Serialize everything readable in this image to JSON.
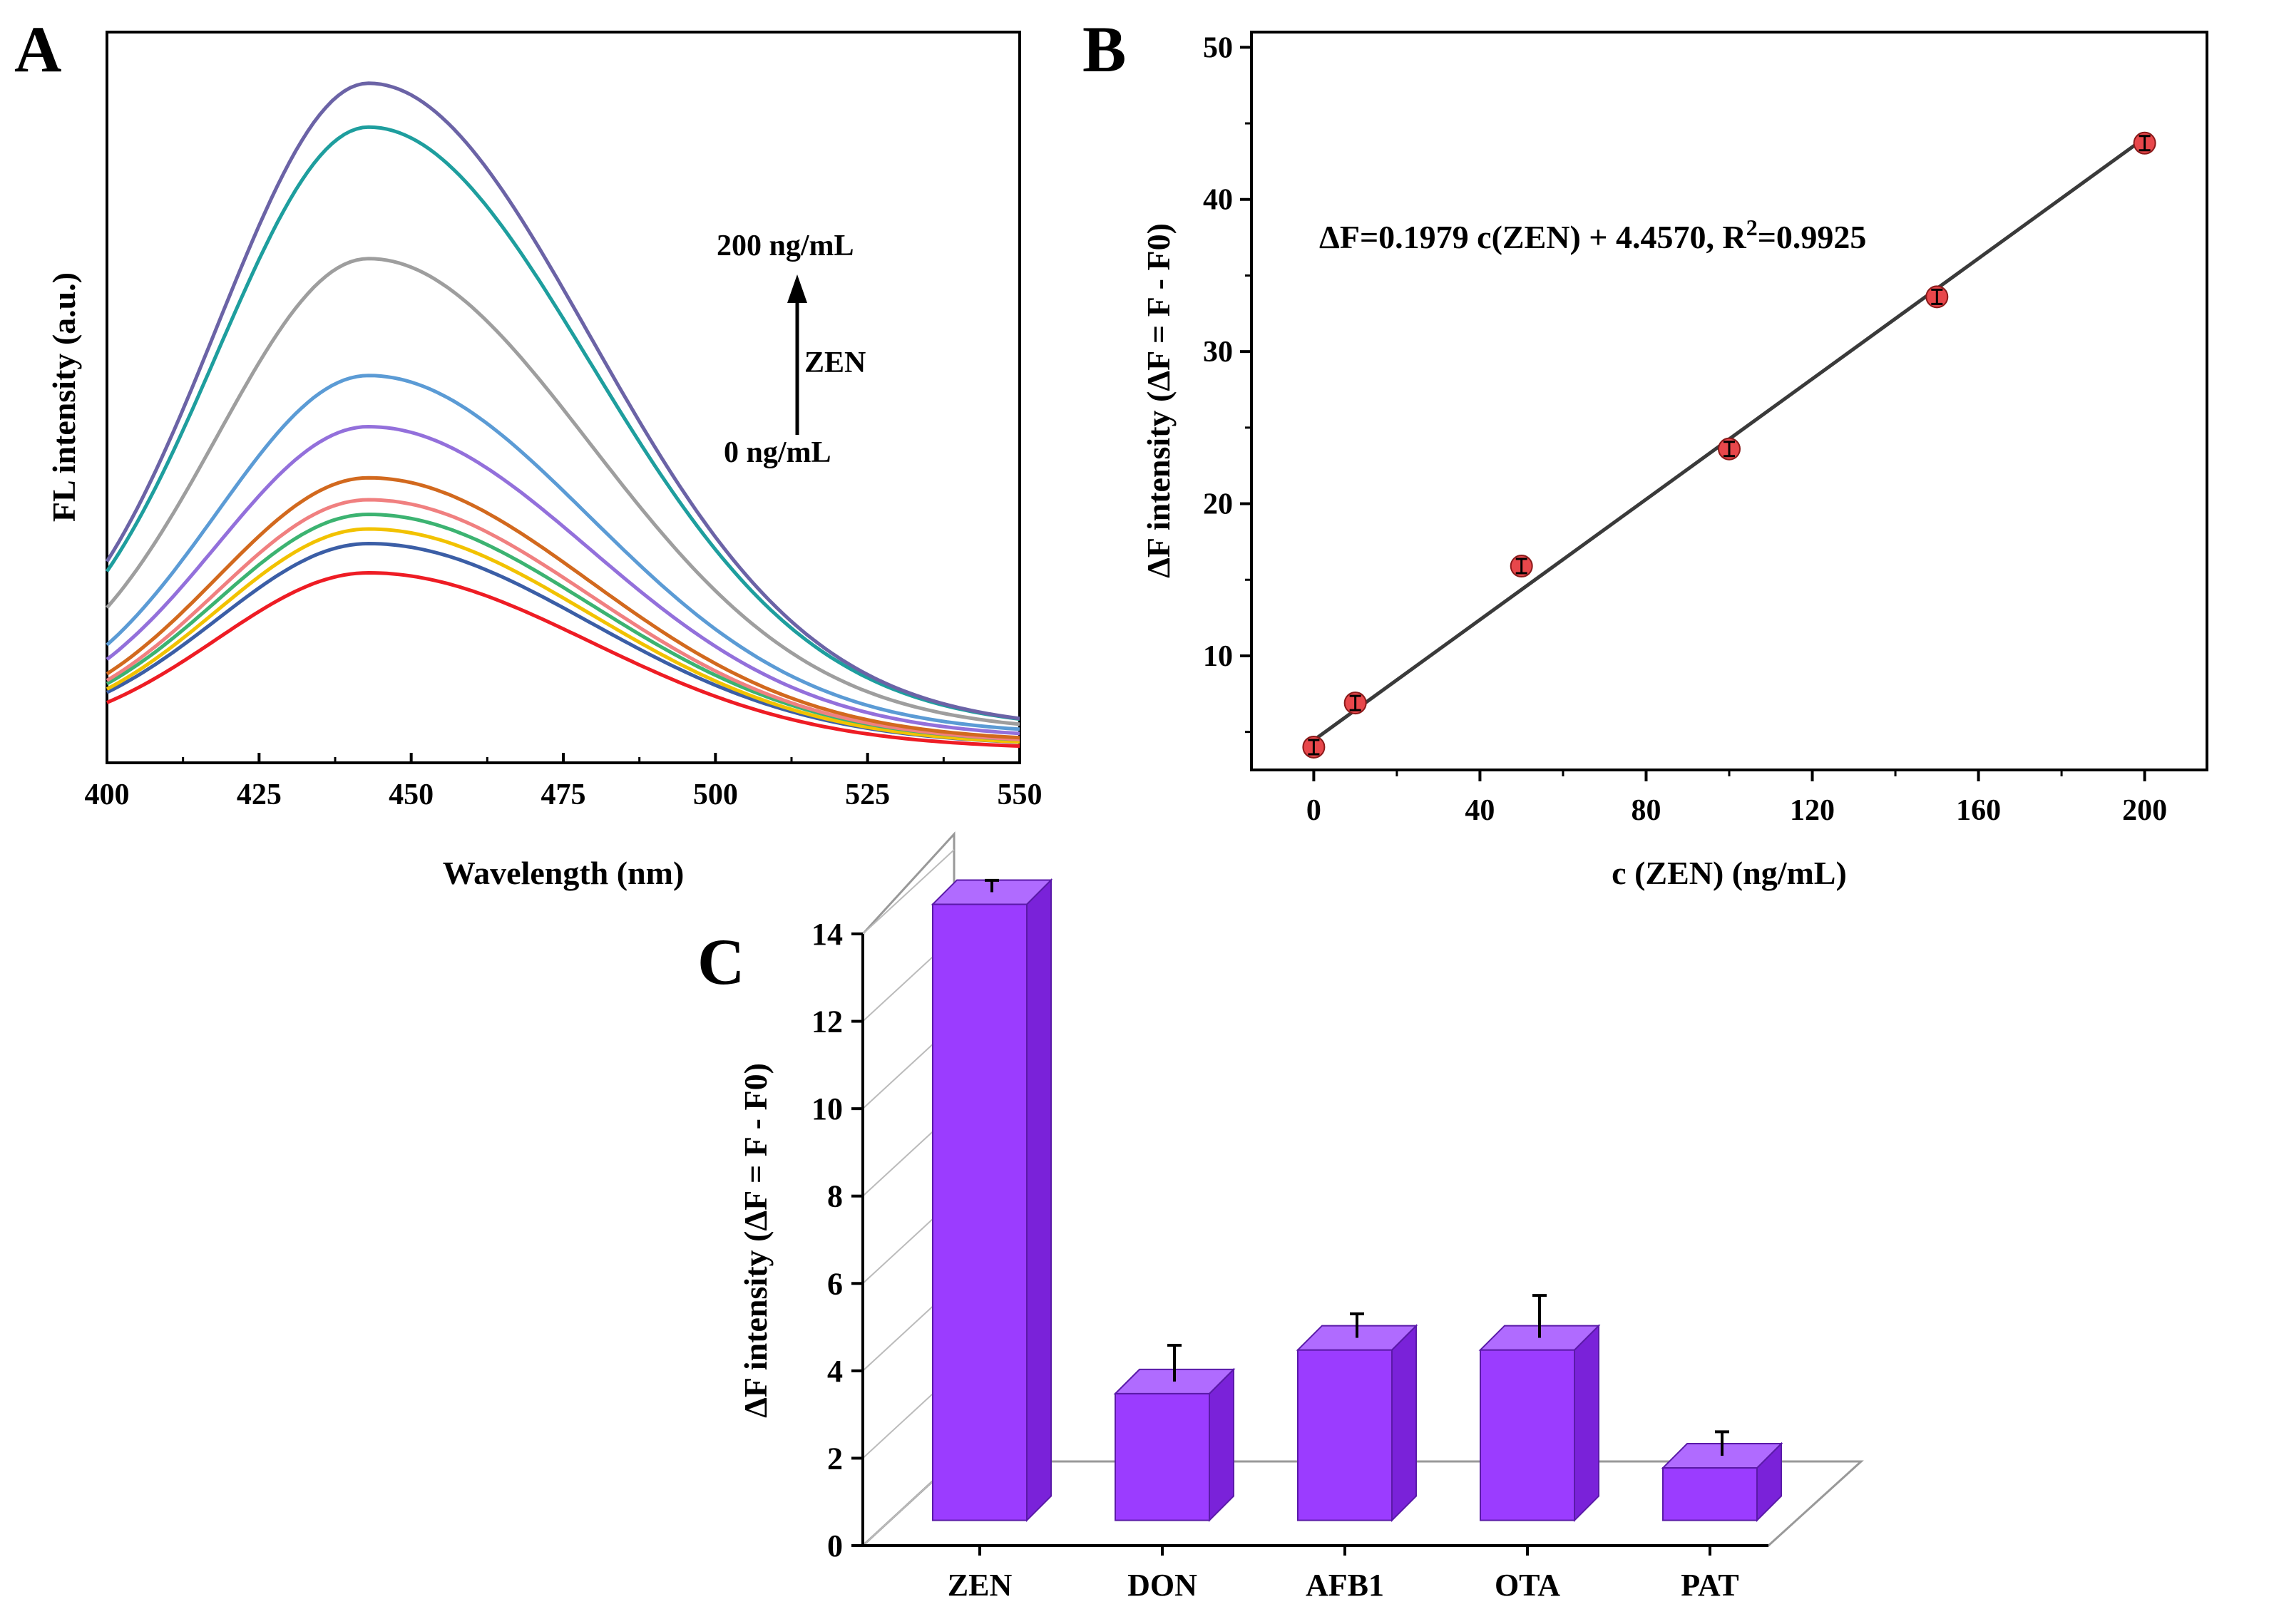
{
  "chart_data": [
    {
      "panel": "A",
      "type": "line",
      "xlabel": "Wavelength (nm)",
      "ylabel": "FL intensity (a.u.)",
      "xlim": [
        400,
        550
      ],
      "ylim": [
        0,
        1
      ],
      "xticks": [
        "400",
        "425",
        "450",
        "475",
        "500",
        "525",
        "550"
      ],
      "annotation": {
        "top": "200 ng/mL",
        "middle": "ZEN",
        "bottom": "0 ng/mL"
      },
      "series": [
        {
          "name": "s1",
          "color": "#ee1c24",
          "start": 0.06,
          "peak": 0.26,
          "end": 0.02
        },
        {
          "name": "s2",
          "color": "#3b5ea6",
          "start": 0.07,
          "peak": 0.3,
          "end": 0.025
        },
        {
          "name": "s3",
          "color": "#f2c200",
          "start": 0.07,
          "peak": 0.32,
          "end": 0.025
        },
        {
          "name": "s4",
          "color": "#3cb371",
          "start": 0.075,
          "peak": 0.34,
          "end": 0.028
        },
        {
          "name": "s5",
          "color": "#f08080",
          "start": 0.075,
          "peak": 0.36,
          "end": 0.028
        },
        {
          "name": "s6",
          "color": "#d2691e",
          "start": 0.08,
          "peak": 0.39,
          "end": 0.03
        },
        {
          "name": "s7",
          "color": "#9370db",
          "start": 0.085,
          "peak": 0.46,
          "end": 0.035
        },
        {
          "name": "s8",
          "color": "#5b9bd5",
          "start": 0.09,
          "peak": 0.53,
          "end": 0.04
        },
        {
          "name": "s9",
          "color": "#9e9e9e",
          "start": 0.15,
          "peak": 0.69,
          "end": 0.045
        },
        {
          "name": "s10",
          "color": "#1e9e9e",
          "start": 0.18,
          "peak": 0.87,
          "end": 0.05
        },
        {
          "name": "s11",
          "color": "#6b63a6",
          "start": 0.18,
          "peak": 0.93,
          "end": 0.05
        }
      ]
    },
    {
      "panel": "B",
      "type": "scatter",
      "xlabel": "c (ZEN) (ng/mL)",
      "ylabel": "ΔF intensity (ΔF = F - F0)",
      "xlim": [
        -15,
        215
      ],
      "ylim": [
        2.5,
        51
      ],
      "xticks": [
        0,
        40,
        80,
        120,
        160,
        200
      ],
      "yticks": [
        10,
        20,
        30,
        40,
        50
      ],
      "x": [
        0,
        10,
        50,
        100,
        150,
        200
      ],
      "y": [
        4.0,
        6.9,
        15.9,
        23.6,
        33.6,
        43.7
      ],
      "fit": {
        "slope": 0.1979,
        "intercept": 4.457
      },
      "equation_main": "ΔF=0.1979 c(ZEN) + 4.4570, R",
      "equation_sup": "2",
      "equation_tail": "=0.9925",
      "marker_color": "#e8474b",
      "line_color": "#3a3a3a"
    },
    {
      "panel": "C",
      "type": "bar",
      "ylabel": "ΔF intensity (ΔF = F - F0)",
      "ylim": [
        0,
        14
      ],
      "yticks": [
        0,
        2,
        4,
        6,
        8,
        10,
        12,
        14
      ],
      "categories": [
        "ZEN",
        "DON",
        "AFB1",
        "OTA",
        "PAT"
      ],
      "values": [
        14.1,
        2.9,
        3.9,
        3.9,
        1.2
      ],
      "errors": [
        0.1,
        0.5,
        0.3,
        0.6,
        0.3
      ],
      "color": "#9b3cff"
    }
  ],
  "labels": {
    "panelA": "A",
    "panelB": "B",
    "panelC": "C"
  }
}
